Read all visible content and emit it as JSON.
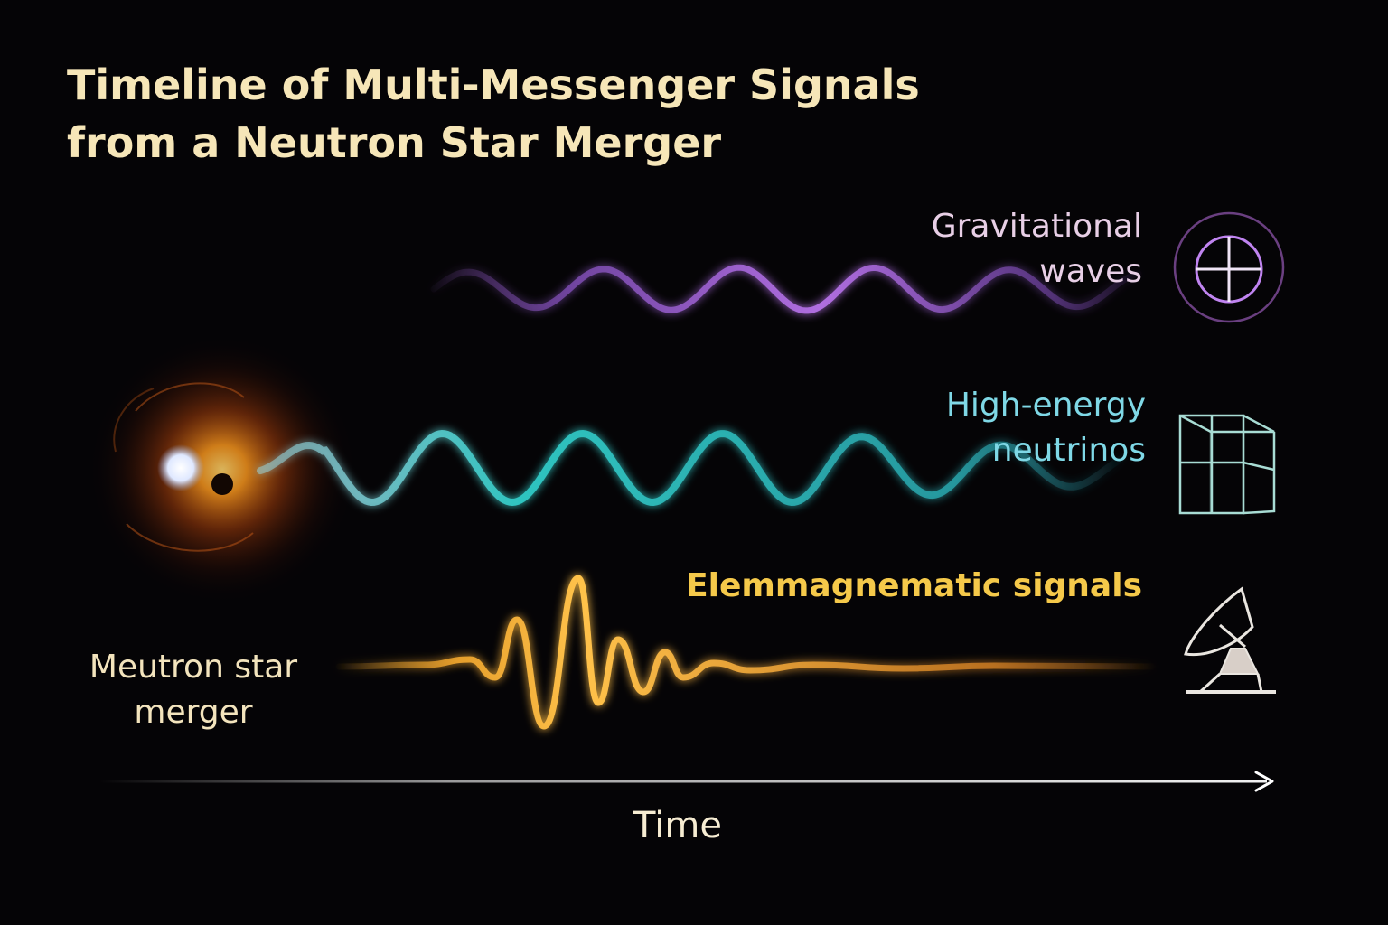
{
  "title_lines": [
    "Timeline of Multi-Messenger Signals",
    "from a Neutron Star Merger"
  ],
  "source": {
    "label_lines": [
      "Meutron star",
      "merger"
    ]
  },
  "signals": {
    "gravitational": {
      "label_lines": [
        "Gravitational",
        "waves"
      ],
      "color": "#9b5fd0",
      "icon": "gravitational-wave-detector-icon"
    },
    "neutrino": {
      "label_lines": [
        "High-energy",
        "neutrinos"
      ],
      "color": "#2fc4c0",
      "icon": "neutrino-detector-cube-icon"
    },
    "electromagnetic": {
      "label_lines": [
        "Elemmagnematic signals"
      ],
      "color": "#f2a72e",
      "icon": "radio-telescope-dish-icon"
    }
  },
  "axis": {
    "label": "Time"
  }
}
